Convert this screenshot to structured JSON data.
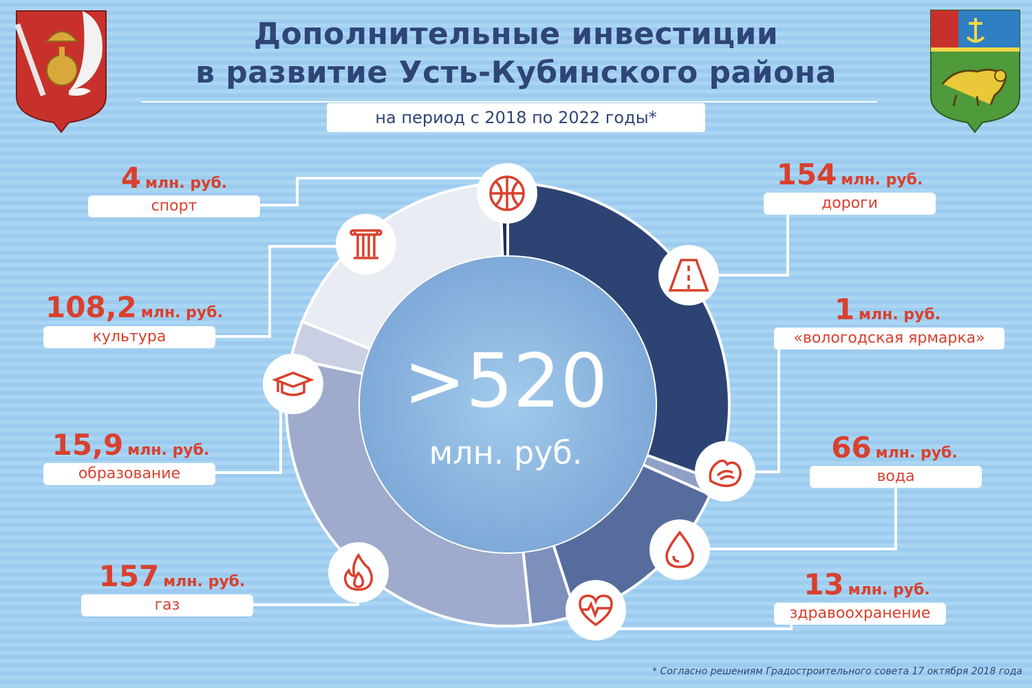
{
  "title_line1": "Дополнительные инвестиции",
  "title_line2": "в развитие Усть-Кубинского района",
  "subtitle": "на период с 2018 по 2022 годы*",
  "center_value": ">520",
  "center_unit": "млн. руб.",
  "footnote": "* Согласно решениям Градостроительного совета 17 октября 2018 года",
  "emblems": {
    "left": "vologda-oblast-coat-of-arms",
    "right": "ust-kubinsky-district-coat-of-arms"
  },
  "colors": {
    "accent": "#d9402d",
    "title": "#2f4577",
    "roads": "#2d4373",
    "water_fair": "#566c9d",
    "health": "#7d8fbb",
    "gas": "#9eabcc",
    "education": "#c9d0e4",
    "culture_sport": "#e9ecf3"
  },
  "chart_data": {
    "type": "pie",
    "title": "Дополнительные инвестиции в развитие Усть-Кубинского района",
    "subtitle": "на период с 2018 по 2022 годы*",
    "unit": "млн. руб.",
    "total_label": ">520",
    "slices": [
      {
        "key": "roads",
        "value": 154,
        "value_text": "154",
        "unit": "млн. руб.",
        "label": "дороги",
        "icon": "road-icon",
        "color": "#2d4373"
      },
      {
        "key": "fair",
        "value": 1,
        "value_text": "1",
        "unit": "млн. руб.",
        "label": "«вологодская ярмарка»",
        "icon": "fair-pastry-icon",
        "color": "#8fa0c6"
      },
      {
        "key": "water",
        "value": 66,
        "value_text": "66",
        "unit": "млн. руб.",
        "label": "вода",
        "icon": "water-drop-icon",
        "color": "#566c9d"
      },
      {
        "key": "health",
        "value": 13,
        "value_text": "13",
        "unit": "млн. руб.",
        "label": "здравоохранение",
        "icon": "heart-pulse-icon",
        "color": "#7d8fbb"
      },
      {
        "key": "gas",
        "value": 157,
        "value_text": "157",
        "unit": "млн. руб.",
        "label": "газ",
        "icon": "flame-icon",
        "color": "#9eabcc"
      },
      {
        "key": "education",
        "value": 15.9,
        "value_text": "15,9",
        "unit": "млн. руб.",
        "label": "образование",
        "icon": "graduation-cap-icon",
        "color": "#c9d0e4"
      },
      {
        "key": "culture",
        "value": 108.2,
        "value_text": "108,2",
        "unit": "млн. руб.",
        "label": "культура",
        "icon": "column-icon",
        "color": "#e9ecf3"
      },
      {
        "key": "sport",
        "value": 4,
        "value_text": "4",
        "unit": "млн. руб.",
        "label": "спорт",
        "icon": "basketball-icon",
        "color": "#1f2f55"
      }
    ]
  }
}
